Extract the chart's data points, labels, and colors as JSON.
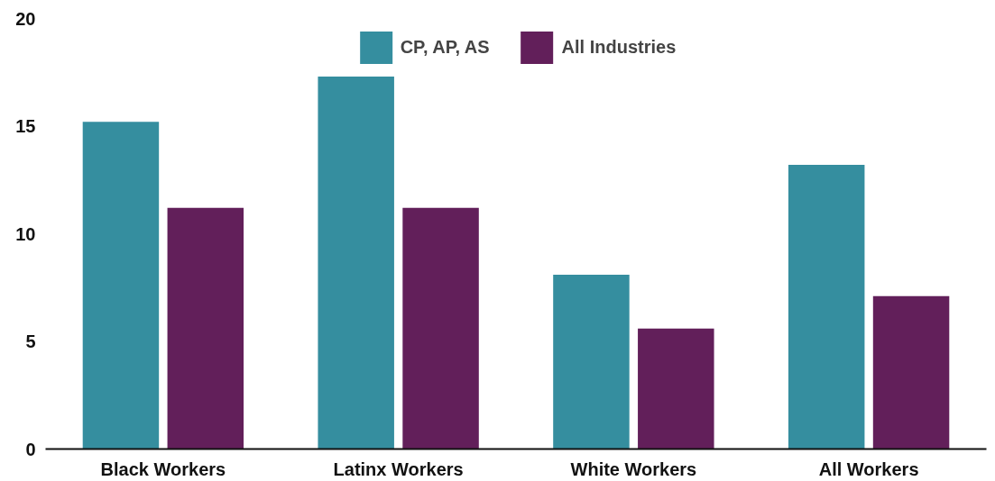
{
  "chart_data": {
    "type": "bar",
    "categories": [
      "Black Workers",
      "Latinx Workers",
      "White Workers",
      "All Workers"
    ],
    "series": [
      {
        "name": "CP, AP, AS",
        "color": "#358e9f",
        "values": [
          15.2,
          17.3,
          8.1,
          13.2
        ]
      },
      {
        "name": "All Industries",
        "color": "#621f5a",
        "values": [
          11.2,
          11.2,
          5.6,
          7.1
        ]
      }
    ],
    "ylim": [
      0,
      20
    ],
    "yticks": [
      0,
      5,
      10,
      15,
      20
    ],
    "grid": false,
    "legend": "top"
  }
}
